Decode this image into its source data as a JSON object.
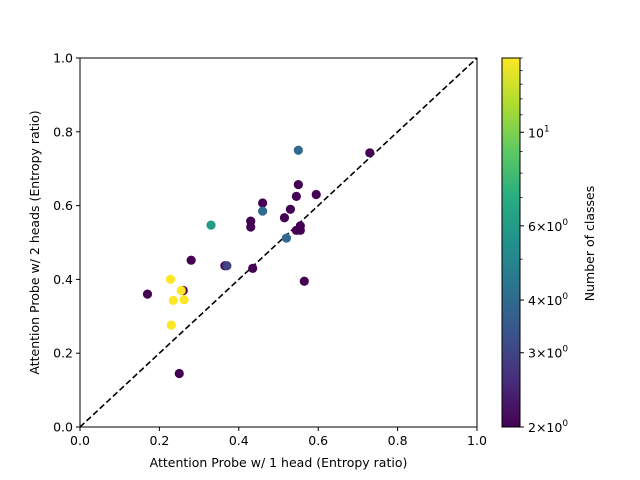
{
  "chart_data": {
    "type": "scatter",
    "xlabel": "Attention Probe w/ 1 head (Entropy ratio)",
    "ylabel": "Attention Probe w/ 2 heads (Entropy ratio)",
    "xlim": [
      0,
      1
    ],
    "ylim": [
      0,
      1
    ],
    "x_ticks": [
      "0.0",
      "0.2",
      "0.4",
      "0.6",
      "0.8",
      "1.0"
    ],
    "y_ticks": [
      "0.0",
      "0.2",
      "0.4",
      "0.6",
      "0.8",
      "1.0"
    ],
    "grid": false,
    "reference_line": "y = x, dashed black",
    "colorbar": {
      "label": "Number of classes",
      "scale": "log",
      "range": [
        2,
        15
      ],
      "colormap": "viridis",
      "tick_values": [
        2,
        3,
        4,
        6,
        10
      ]
    },
    "points": [
      {
        "x": 0.17,
        "y": 0.36,
        "classes": 2
      },
      {
        "x": 0.25,
        "y": 0.145,
        "classes": 2
      },
      {
        "x": 0.26,
        "y": 0.37,
        "classes": 2
      },
      {
        "x": 0.28,
        "y": 0.452,
        "classes": 2
      },
      {
        "x": 0.365,
        "y": 0.437,
        "classes": 2
      },
      {
        "x": 0.43,
        "y": 0.542,
        "classes": 2
      },
      {
        "x": 0.43,
        "y": 0.558,
        "classes": 2
      },
      {
        "x": 0.435,
        "y": 0.43,
        "classes": 2
      },
      {
        "x": 0.46,
        "y": 0.607,
        "classes": 2
      },
      {
        "x": 0.515,
        "y": 0.567,
        "classes": 2
      },
      {
        "x": 0.53,
        "y": 0.59,
        "classes": 2
      },
      {
        "x": 0.545,
        "y": 0.625,
        "classes": 2
      },
      {
        "x": 0.545,
        "y": 0.533,
        "classes": 2
      },
      {
        "x": 0.55,
        "y": 0.657,
        "classes": 2
      },
      {
        "x": 0.555,
        "y": 0.545,
        "classes": 2
      },
      {
        "x": 0.555,
        "y": 0.533,
        "classes": 2
      },
      {
        "x": 0.565,
        "y": 0.395,
        "classes": 2
      },
      {
        "x": 0.595,
        "y": 0.63,
        "classes": 2
      },
      {
        "x": 0.73,
        "y": 0.743,
        "classes": 2
      },
      {
        "x": 0.37,
        "y": 0.437,
        "classes": 3
      },
      {
        "x": 0.55,
        "y": 0.75,
        "classes": 4
      },
      {
        "x": 0.46,
        "y": 0.585,
        "classes": 4
      },
      {
        "x": 0.52,
        "y": 0.512,
        "classes": 4
      },
      {
        "x": 0.33,
        "y": 0.547,
        "classes": 6
      },
      {
        "x": 0.228,
        "y": 0.4,
        "classes": 15
      },
      {
        "x": 0.235,
        "y": 0.343,
        "classes": 15
      },
      {
        "x": 0.255,
        "y": 0.37,
        "classes": 15
      },
      {
        "x": 0.262,
        "y": 0.345,
        "classes": 15
      },
      {
        "x": 0.23,
        "y": 0.276,
        "classes": 15
      }
    ]
  }
}
